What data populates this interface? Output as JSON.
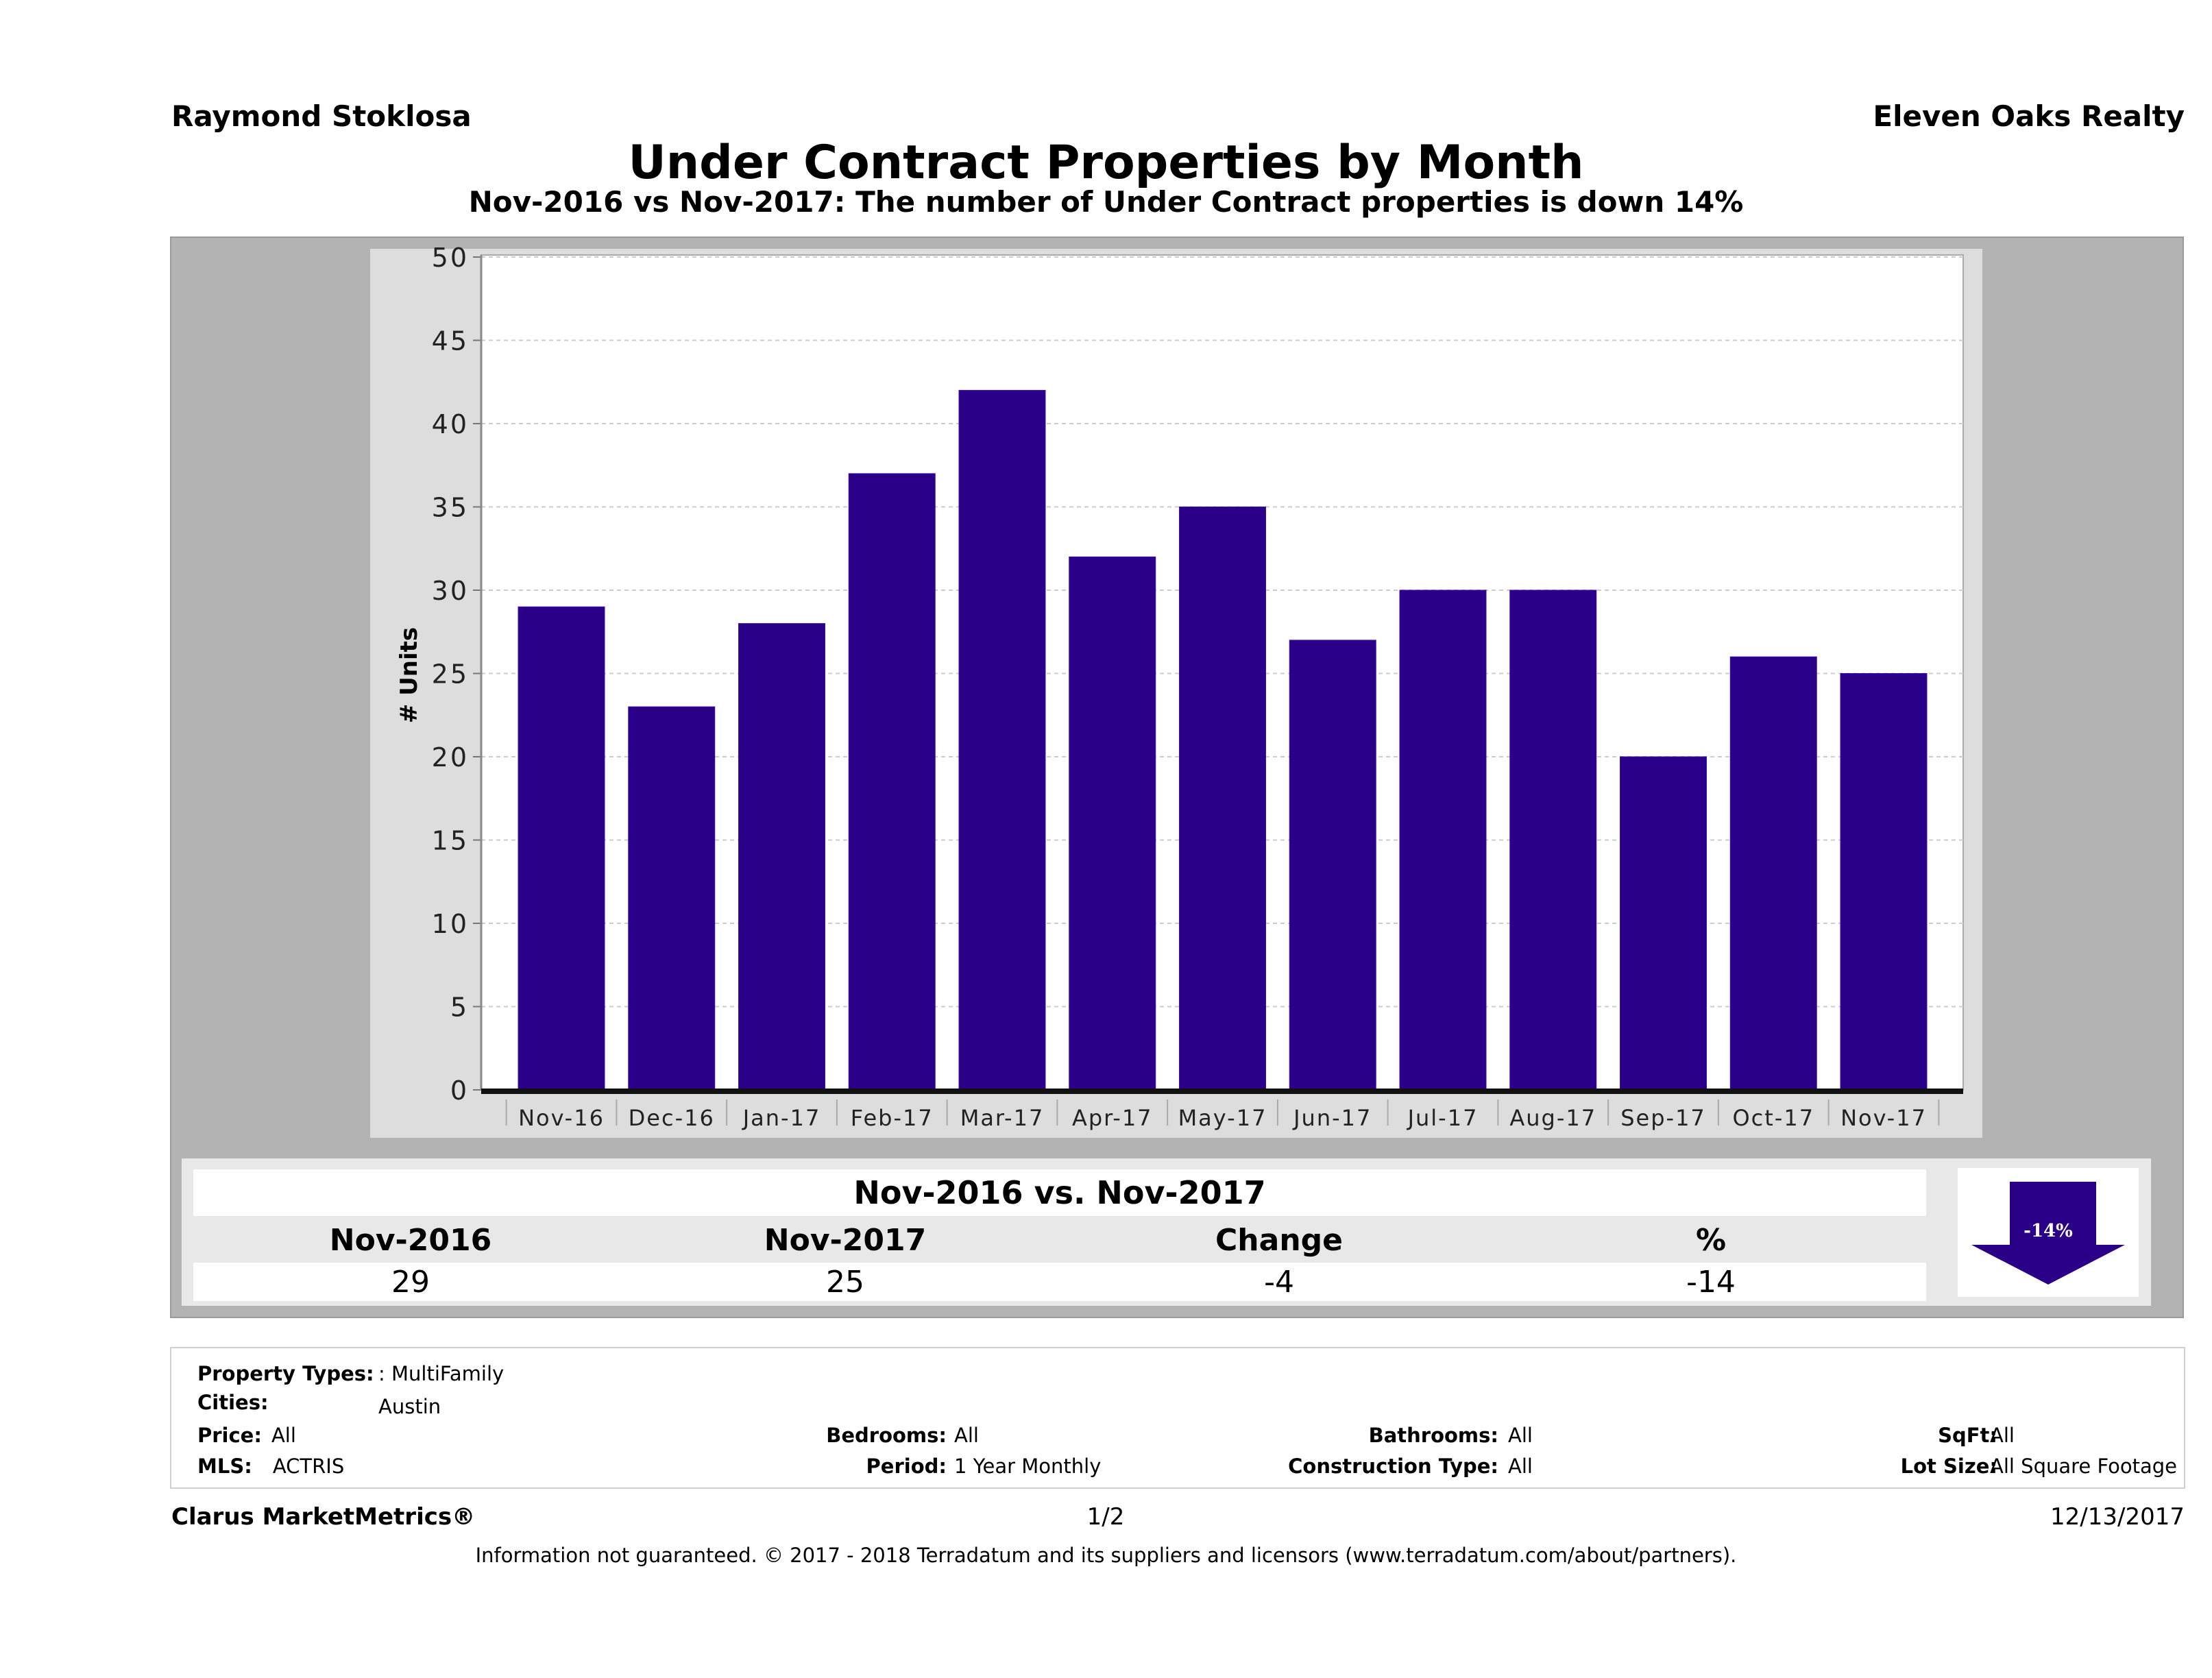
{
  "header": {
    "agent_name": "Raymond Stoklosa",
    "brokerage": "Eleven Oaks Realty",
    "title": "Under Contract Properties by Month",
    "subtitle": "Nov-2016 vs Nov-2017: The number of Under Contract  properties is down 14%"
  },
  "colors": {
    "bar": "#2a0088",
    "panel_outer": "#b3b3b3",
    "panel_inner": "#dddddd",
    "arrow": "#2a0088"
  },
  "chart_data": {
    "type": "bar",
    "title": "Under Contract Properties by Month",
    "xlabel": "",
    "ylabel": "# Units",
    "categories": [
      "Nov-16",
      "Dec-16",
      "Jan-17",
      "Feb-17",
      "Mar-17",
      "Apr-17",
      "May-17",
      "Jun-17",
      "Jul-17",
      "Aug-17",
      "Sep-17",
      "Oct-17",
      "Nov-17"
    ],
    "values": [
      29,
      23,
      28,
      37,
      42,
      32,
      35,
      27,
      30,
      30,
      20,
      26,
      25
    ],
    "ylim": [
      0,
      50
    ],
    "yticks": [
      0,
      5,
      10,
      15,
      20,
      25,
      30,
      35,
      40,
      45,
      50
    ],
    "grid": true,
    "legend": "none"
  },
  "summary": {
    "title": "Nov-2016 vs. Nov-2017",
    "headers": [
      "Nov-2016",
      "Nov-2017",
      "Change",
      "%"
    ],
    "values": [
      "29",
      "25",
      "-4",
      "-14"
    ],
    "badge": "-14%",
    "badge_direction": "down"
  },
  "criteria": {
    "property_types": {
      "label": "Property Types:",
      "value": ": MultiFamily"
    },
    "cities": {
      "label": "Cities:",
      "value": "Austin"
    },
    "price": {
      "label": "Price:",
      "value": "All"
    },
    "bedrooms": {
      "label": "Bedrooms:",
      "value": "All"
    },
    "bathrooms": {
      "label": "Bathrooms:",
      "value": "All"
    },
    "sqft": {
      "label": "SqFt:",
      "value": "All"
    },
    "mls": {
      "label": "MLS:",
      "value": "ACTRIS"
    },
    "period": {
      "label": "Period:",
      "value": "1 Year Monthly"
    },
    "construction_type": {
      "label": "Construction Type:",
      "value": "All"
    },
    "lot_size": {
      "label": "Lot Size:",
      "value": "All Square Footage"
    }
  },
  "footer": {
    "brand": "Clarus MarketMetrics®",
    "page": "1/2",
    "date": "12/13/2017",
    "disclaimer": "Information not guaranteed. © 2017 - 2018 Terradatum and its suppliers and licensors (www.terradatum.com/about/partners)."
  }
}
